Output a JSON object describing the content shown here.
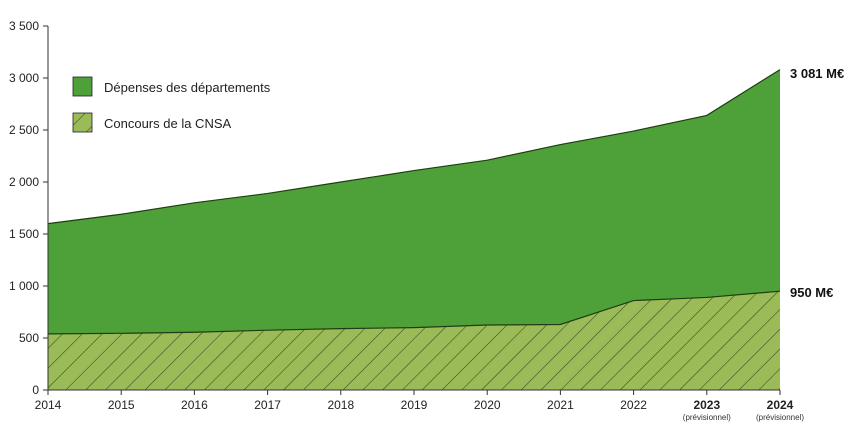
{
  "chart_data": {
    "type": "area",
    "x": [
      "2014",
      "2015",
      "2016",
      "2017",
      "2018",
      "2019",
      "2020",
      "2021",
      "2022",
      "2023",
      "2024"
    ],
    "x_sublabels": [
      "",
      "",
      "",
      "",
      "",
      "",
      "",
      "",
      "",
      "(prévisionnel)",
      "(prévisionnel)"
    ],
    "x_bold": [
      false,
      false,
      false,
      false,
      false,
      false,
      false,
      false,
      false,
      true,
      true
    ],
    "y_ticks": [
      "0",
      "500",
      "1 000",
      "1 500",
      "2 000",
      "2 500",
      "3 000",
      "3 500"
    ],
    "ylim": [
      0,
      3500
    ],
    "grid": false,
    "legend_position": "top-left",
    "series": [
      {
        "name": "Dépenses des départements",
        "values": [
          1600,
          1690,
          1800,
          1890,
          2000,
          2110,
          2210,
          2360,
          2490,
          2640,
          3081
        ],
        "color": "#4ea138",
        "fill": "solid"
      },
      {
        "name": "Concours de la CNSA",
        "values": [
          540,
          545,
          555,
          575,
          590,
          600,
          625,
          630,
          860,
          890,
          950
        ],
        "color": "#9bbb59",
        "fill": "hatched"
      }
    ],
    "end_labels": [
      "3 081 M€",
      "950 M€"
    ]
  }
}
